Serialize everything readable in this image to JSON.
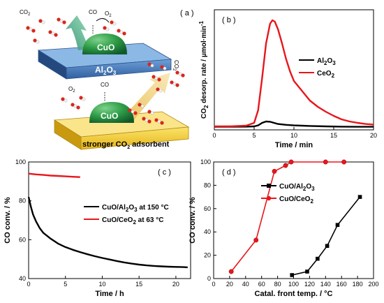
{
  "colors": {
    "series_black": "#000000",
    "series_red": "#e8161b",
    "plate_blue": "#3b6fb6",
    "plate_yellow": "#f2cf23",
    "dome_green": "#1f8a3a",
    "arrow_green": "#49b98a",
    "arrow_yellow": "#f4d58a",
    "molecule_red": "#d9261c"
  },
  "panel_a": {
    "label": "( a )",
    "cuo_top": "CuO",
    "cuo_bottom": "CuO",
    "support_top": "Al",
    "support_top_sub": "2",
    "support_top_tail": "O",
    "support_top_sub2": "3",
    "support_bottom": "stronger CO",
    "support_bottom_sub": "2",
    "support_bottom_tail": " adsorbent",
    "co2_label_left": "CO",
    "co2_label_left_sub": "2",
    "co_label_top": "CO",
    "o2_label_top": "O",
    "o2_label_top_sub": "2",
    "co2_label_right": "CO",
    "co2_label_right_sub": "2",
    "o2_label_mid": "O",
    "o2_label_mid_sub": "2",
    "co_label_mid": "CO"
  },
  "chart_data": [
    {
      "panel": "b",
      "type": "line",
      "label": "( b )",
      "xlabel": "Time / min",
      "ylabel_parts": [
        "CO",
        "2",
        " desorp. rate / μmol·min",
        "-1"
      ],
      "xlim": [
        0,
        20
      ],
      "ylim": [
        -0.2,
        8.4
      ],
      "xticks": [
        0,
        5,
        10,
        15,
        20
      ],
      "legend": [
        {
          "text": "Al",
          "sub": "2",
          "tail": "O",
          "sub2": "3"
        },
        {
          "text": "CeO",
          "sub": "2",
          "tail": "",
          "sub2": ""
        }
      ],
      "series": [
        {
          "name": "Al2O3",
          "color": "#000000",
          "x": [
            0,
            2,
            4,
            5,
            5.5,
            6,
            6.5,
            7,
            7.5,
            8,
            9,
            10,
            11,
            12,
            14,
            16,
            18,
            20
          ],
          "y": [
            0.02,
            0.02,
            0.03,
            0.05,
            0.12,
            0.3,
            0.4,
            0.38,
            0.3,
            0.22,
            0.16,
            0.12,
            0.1,
            0.08,
            0.05,
            0.03,
            0.02,
            0.02
          ]
        },
        {
          "name": "CeO2",
          "color": "#e8161b",
          "x": [
            0,
            2,
            4,
            5,
            5.5,
            6,
            6.5,
            7,
            7.3,
            7.6,
            8,
            8.5,
            9,
            9.5,
            10,
            11,
            12,
            13,
            14,
            15,
            16,
            17,
            18,
            19,
            20
          ],
          "y": [
            0.05,
            0.05,
            0.1,
            0.3,
            1.2,
            3.5,
            6.0,
            7.4,
            7.65,
            7.55,
            7.0,
            6.0,
            4.9,
            4.0,
            3.3,
            2.6,
            1.9,
            1.45,
            1.1,
            0.8,
            0.55,
            0.4,
            0.3,
            0.22,
            0.18
          ]
        }
      ]
    },
    {
      "panel": "c",
      "type": "line",
      "label": "( c )",
      "xlabel": "Time / h",
      "ylabel": "CO conv. / %",
      "xlim": [
        0,
        22
      ],
      "ylim": [
        40,
        100
      ],
      "xticks": [
        0,
        5,
        10,
        15,
        20
      ],
      "yticks": [
        40,
        60,
        80,
        100
      ],
      "legend": [
        {
          "text": "CuO/Al",
          "sub": "2",
          "tail": "O",
          "sub2": "3",
          "tail2": " at 150 °C"
        },
        {
          "text": "CuO/CeO",
          "sub": "2",
          "tail": " at 63 °C",
          "sub2": "",
          "tail2": ""
        }
      ],
      "series": [
        {
          "name": "CuO/Al2O3 at 150 °C",
          "color": "#000000",
          "x": [
            0,
            0.3,
            0.6,
            1,
            1.5,
            2,
            3,
            4,
            5,
            6,
            7,
            8,
            9,
            10,
            11,
            12,
            13,
            14,
            15,
            16,
            17,
            18,
            19,
            20,
            21,
            21.6
          ],
          "y": [
            82,
            77,
            73,
            69.5,
            66,
            63.5,
            60.5,
            58,
            56.2,
            54.8,
            53.6,
            52.5,
            51.5,
            50.6,
            49.8,
            49,
            48.3,
            47.7,
            47.2,
            46.8,
            46.5,
            46.3,
            46.1,
            46,
            45.9,
            45.8
          ]
        },
        {
          "name": "CuO/CeO2 at 63 °C",
          "color": "#e8161b",
          "x": [
            0,
            1,
            2,
            3,
            4,
            5,
            6,
            7
          ],
          "y": [
            94,
            93.6,
            93.3,
            93,
            92.8,
            92.6,
            92.4,
            92.2
          ]
        }
      ]
    },
    {
      "panel": "d",
      "type": "line",
      "label": "( d )",
      "xlabel": "Catal. front temp. / °C",
      "ylabel": "CO conv. / %",
      "xlim": [
        0,
        200
      ],
      "ylim": [
        0,
        100
      ],
      "xticks": [
        0,
        20,
        40,
        60,
        80,
        100,
        120,
        140,
        160,
        180,
        200
      ],
      "yticks": [
        0,
        20,
        40,
        60,
        80,
        100
      ],
      "legend": [
        {
          "text": "CuO/Al",
          "sub": "2",
          "tail": "O",
          "sub2": "3"
        },
        {
          "text": "CuO/CeO",
          "sub": "2",
          "tail": "",
          "sub2": ""
        }
      ],
      "series": [
        {
          "name": "CuO/Al2O3",
          "color": "#000000",
          "marker": "square",
          "x": [
            98,
            117,
            130,
            142,
            155,
            183
          ],
          "y": [
            3,
            6,
            17,
            28,
            46,
            70
          ]
        },
        {
          "name": "CuO/CeO2",
          "color": "#e8161b",
          "marker": "circle",
          "x": [
            22,
            53,
            76,
            90,
            97,
            140,
            163
          ],
          "y": [
            6,
            33,
            92,
            97,
            100,
            100,
            100
          ]
        }
      ]
    }
  ]
}
